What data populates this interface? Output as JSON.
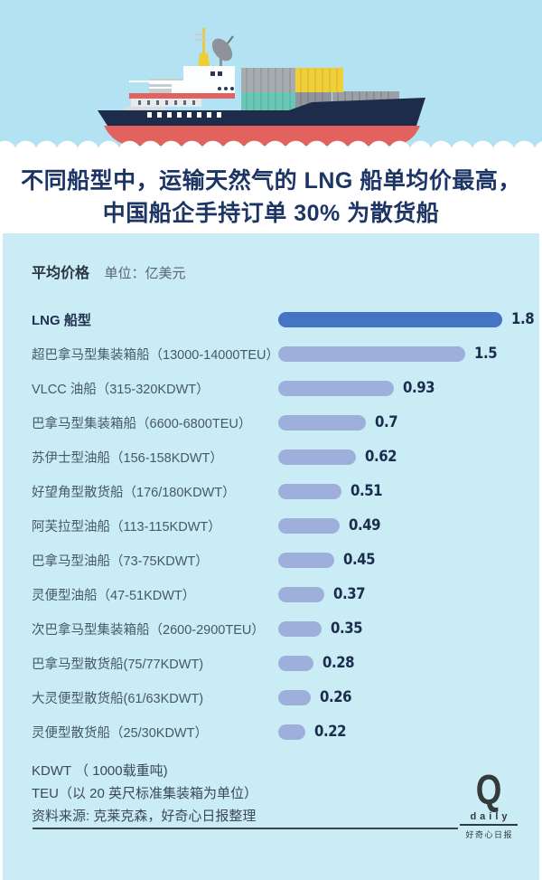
{
  "poster": {
    "title_line1": "不同船型中，运输天然气的 LNG 船单均价最高，",
    "title_line2": "中国船企手持订单 30% 为散货船"
  },
  "chart_header": {
    "metric": "平均价格",
    "unit": "单位：亿美元"
  },
  "chart_data": {
    "type": "bar",
    "orientation": "horizontal",
    "title": "平均价格",
    "unit": "亿美元",
    "categories": [
      "LNG 船型",
      "超巴拿马型集装箱船（13000-14000TEU）",
      "VLCC 油船（315-320KDWT）",
      "巴拿马型集装箱船（6600-6800TEU）",
      "苏伊士型油船（156-158KDWT）",
      "好望角型散货船（176/180KDWT）",
      "阿芙拉型油船（113-115KDWT）",
      "巴拿马型油船（73-75KDWT）",
      "灵便型油船（47-51KDWT）",
      "次巴拿马型集装箱船（2600-2900TEU）",
      "巴拿马型散货船(75/77KDWT)",
      "大灵便型散货船(61/63KDWT)",
      "灵便型散货船（25/30KDWT）"
    ],
    "values": [
      1.8,
      1.5,
      0.93,
      0.7,
      0.62,
      0.51,
      0.49,
      0.45,
      0.37,
      0.35,
      0.28,
      0.26,
      0.22
    ],
    "value_labels": [
      "1.8",
      "1.5",
      "0.93",
      "0.7",
      "0.62",
      "0.51",
      "0.49",
      "0.45",
      "0.37",
      "0.35",
      "0.28",
      "0.26",
      "0.22"
    ],
    "xlim": [
      0,
      1.8
    ],
    "highlight_index": 0,
    "grid": false,
    "legend": false
  },
  "footnotes": {
    "line1": "KDWT （ 1000载重吨)",
    "line2": "TEU（以 20 英尺标准集装箱为单位）",
    "source": "资料来源: 克莱克森，好奇心日报整理"
  },
  "logo": {
    "q": "Q",
    "daily": "daily",
    "name": "好奇心日报"
  },
  "colors": {
    "sky": "#B3E3F2",
    "panel": "#C9ECF5",
    "title_text": "#1C3565",
    "bar_highlight": "#4674C5",
    "bar_normal": "#9FAFDC",
    "value_text": "#1C2C4E",
    "hull_navy": "#1C2C4A",
    "keel_red": "#E2625E",
    "funnel_yellow": "#EFCD35",
    "container_teal": "#6AC7B6"
  }
}
